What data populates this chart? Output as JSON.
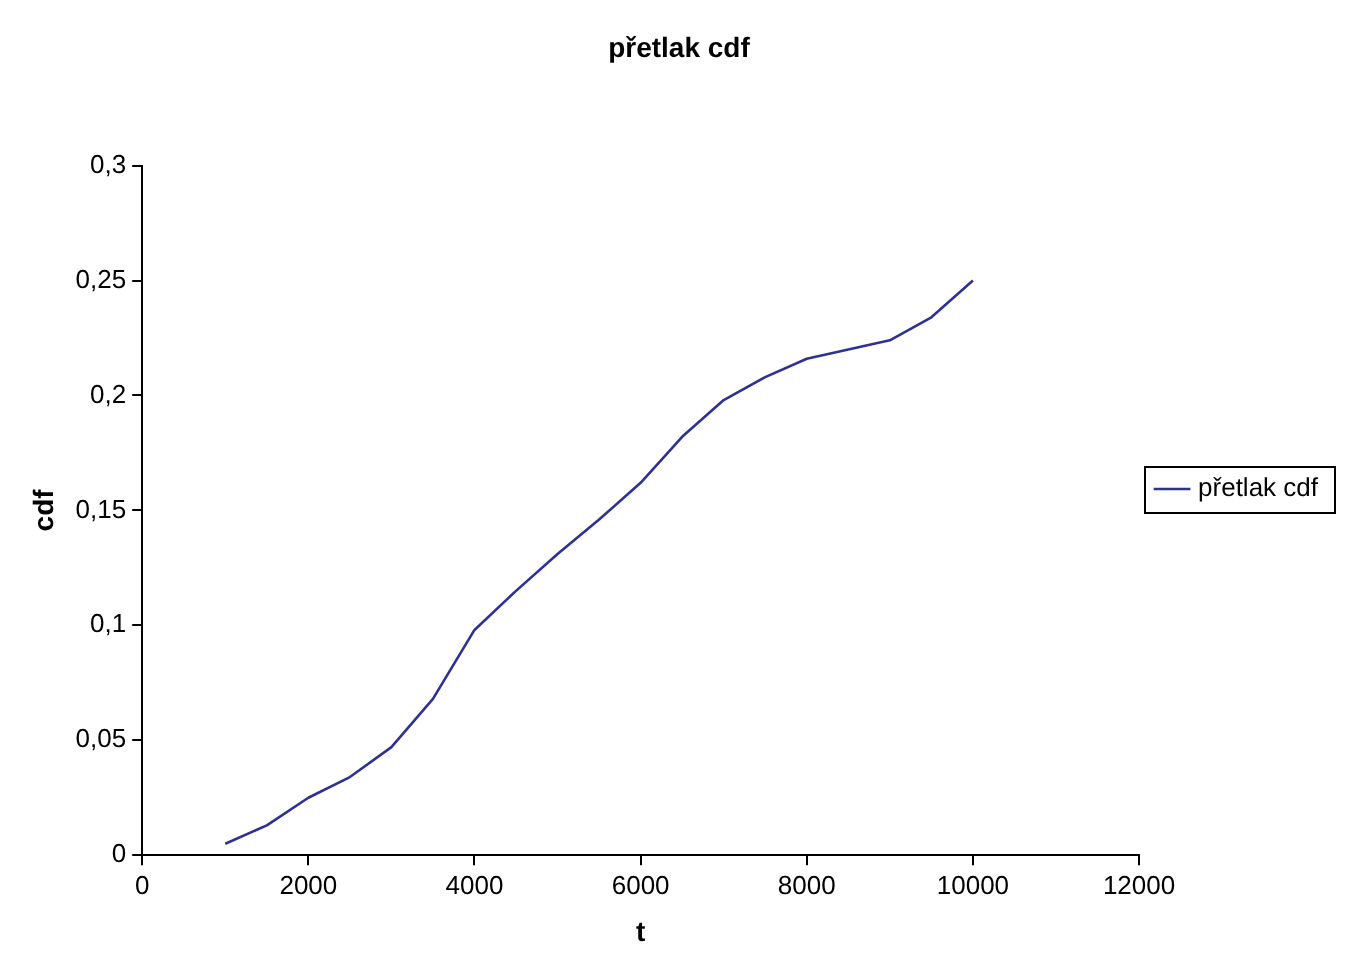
{
  "chart_data": {
    "type": "line",
    "title": "přetlak cdf",
    "xlabel": "t",
    "ylabel": "cdf",
    "x": [
      1000,
      1500,
      2000,
      2500,
      3000,
      3500,
      4000,
      4500,
      5000,
      5500,
      6000,
      6500,
      7000,
      7500,
      8000,
      8500,
      9000,
      9500,
      10000
    ],
    "series": [
      {
        "name": "přetlak cdf",
        "color": "#2e3192",
        "values": [
          0.005,
          0.013,
          0.025,
          0.034,
          0.047,
          0.068,
          0.098,
          0.115,
          0.131,
          0.146,
          0.162,
          0.182,
          0.198,
          0.208,
          0.216,
          0.22,
          0.224,
          0.234,
          0.25
        ]
      }
    ],
    "xlim": [
      0,
      12000
    ],
    "xticks": [
      0,
      2000,
      4000,
      6000,
      8000,
      10000,
      12000
    ],
    "ylim": [
      0,
      0.3
    ],
    "yticks": [
      0,
      {
        "value": 0.05,
        "label": "0,05"
      },
      {
        "value": 0.1,
        "label": "0,1"
      },
      {
        "value": 0.15,
        "label": "0,15"
      },
      {
        "value": 0.2,
        "label": "0,2"
      },
      {
        "value": 0.25,
        "label": "0,25"
      },
      {
        "value": 0.3,
        "label": "0,3"
      }
    ],
    "grid": false,
    "legend": "right",
    "marker": "none",
    "line_style": "solid"
  }
}
